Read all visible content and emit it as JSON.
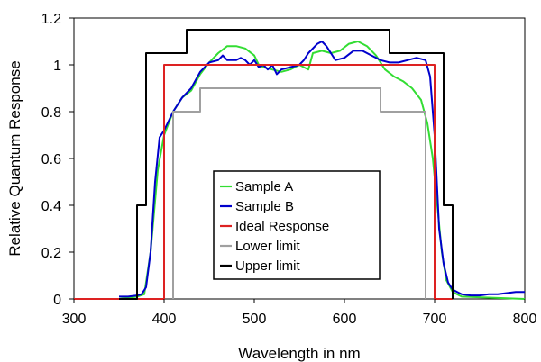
{
  "chart_data": {
    "type": "line",
    "xlabel": "Wavelength in nm",
    "ylabel": "Relative Quantum Response",
    "xlim": [
      300,
      800
    ],
    "ylim": [
      0,
      1.2
    ],
    "x_ticks": [
      300,
      400,
      500,
      600,
      700,
      800
    ],
    "x_tick_labels": [
      "300",
      "400",
      "500",
      "600",
      "700",
      "800"
    ],
    "y_ticks": [
      0,
      0.2,
      0.4,
      0.6,
      0.8,
      1,
      1.2
    ],
    "y_tick_labels": [
      "0",
      "0.2",
      "0.4",
      "0.6",
      "0.8",
      "1",
      "1.2"
    ],
    "grid": false,
    "legend_position": "center",
    "series": [
      {
        "name": "Sample A",
        "color": "#33dd33",
        "points": [
          [
            350,
            0.0
          ],
          [
            370,
            0.01
          ],
          [
            378,
            0.02
          ],
          [
            385,
            0.2
          ],
          [
            393,
            0.55
          ],
          [
            400,
            0.7
          ],
          [
            410,
            0.8
          ],
          [
            420,
            0.86
          ],
          [
            430,
            0.89
          ],
          [
            440,
            0.96
          ],
          [
            450,
            1.01
          ],
          [
            460,
            1.05
          ],
          [
            470,
            1.08
          ],
          [
            480,
            1.08
          ],
          [
            490,
            1.07
          ],
          [
            500,
            1.04
          ],
          [
            505,
            1.0
          ],
          [
            510,
            0.99
          ],
          [
            520,
            0.98
          ],
          [
            530,
            0.97
          ],
          [
            540,
            0.98
          ],
          [
            550,
            1.0
          ],
          [
            560,
            0.98
          ],
          [
            565,
            1.05
          ],
          [
            575,
            1.06
          ],
          [
            585,
            1.05
          ],
          [
            595,
            1.06
          ],
          [
            605,
            1.09
          ],
          [
            615,
            1.1
          ],
          [
            625,
            1.08
          ],
          [
            635,
            1.04
          ],
          [
            645,
            0.98
          ],
          [
            655,
            0.95
          ],
          [
            665,
            0.93
          ],
          [
            675,
            0.9
          ],
          [
            685,
            0.85
          ],
          [
            692,
            0.75
          ],
          [
            698,
            0.6
          ],
          [
            703,
            0.4
          ],
          [
            708,
            0.2
          ],
          [
            713,
            0.08
          ],
          [
            720,
            0.03
          ],
          [
            730,
            0.01
          ],
          [
            800,
            0.0
          ]
        ]
      },
      {
        "name": "Sample B",
        "color": "#0000cc",
        "points": [
          [
            350,
            0.01
          ],
          [
            360,
            0.01
          ],
          [
            370,
            0.015
          ],
          [
            375,
            0.02
          ],
          [
            380,
            0.05
          ],
          [
            385,
            0.2
          ],
          [
            390,
            0.5
          ],
          [
            395,
            0.69
          ],
          [
            400,
            0.72
          ],
          [
            410,
            0.8
          ],
          [
            420,
            0.86
          ],
          [
            430,
            0.9
          ],
          [
            440,
            0.97
          ],
          [
            450,
            1.01
          ],
          [
            460,
            1.02
          ],
          [
            465,
            1.04
          ],
          [
            470,
            1.02
          ],
          [
            480,
            1.02
          ],
          [
            485,
            1.03
          ],
          [
            490,
            1.02
          ],
          [
            495,
            1.0
          ],
          [
            500,
            1.02
          ],
          [
            505,
            0.99
          ],
          [
            510,
            1.0
          ],
          [
            515,
            0.98
          ],
          [
            520,
            1.0
          ],
          [
            525,
            0.96
          ],
          [
            530,
            0.98
          ],
          [
            540,
            0.99
          ],
          [
            550,
            1.0
          ],
          [
            555,
            1.02
          ],
          [
            560,
            1.05
          ],
          [
            570,
            1.09
          ],
          [
            575,
            1.1
          ],
          [
            580,
            1.08
          ],
          [
            585,
            1.05
          ],
          [
            590,
            1.02
          ],
          [
            600,
            1.03
          ],
          [
            610,
            1.06
          ],
          [
            620,
            1.06
          ],
          [
            630,
            1.04
          ],
          [
            640,
            1.02
          ],
          [
            650,
            1.01
          ],
          [
            660,
            1.01
          ],
          [
            670,
            1.02
          ],
          [
            680,
            1.03
          ],
          [
            690,
            1.02
          ],
          [
            695,
            0.95
          ],
          [
            700,
            0.7
          ],
          [
            705,
            0.3
          ],
          [
            710,
            0.15
          ],
          [
            715,
            0.07
          ],
          [
            720,
            0.04
          ],
          [
            730,
            0.02
          ],
          [
            740,
            0.015
          ],
          [
            750,
            0.015
          ],
          [
            760,
            0.02
          ],
          [
            770,
            0.02
          ],
          [
            780,
            0.025
          ],
          [
            790,
            0.03
          ],
          [
            800,
            0.03
          ]
        ]
      },
      {
        "name": "Ideal Response",
        "color": "#dd2222",
        "points": [
          [
            300,
            0
          ],
          [
            400,
            0
          ],
          [
            400,
            1
          ],
          [
            700,
            1
          ],
          [
            700,
            0
          ],
          [
            720,
            0
          ]
        ]
      },
      {
        "name": "Lower limit",
        "color": "#a0a0a0",
        "points": [
          [
            410,
            0
          ],
          [
            410,
            0.8
          ],
          [
            440,
            0.8
          ],
          [
            440,
            0.9
          ],
          [
            640,
            0.9
          ],
          [
            640,
            0.8
          ],
          [
            690,
            0.8
          ],
          [
            690,
            0
          ]
        ]
      },
      {
        "name": "Upper limit",
        "color": "#000000",
        "points": [
          [
            350,
            0
          ],
          [
            370,
            0
          ],
          [
            370,
            0.4
          ],
          [
            380,
            0.4
          ],
          [
            380,
            1.05
          ],
          [
            425,
            1.05
          ],
          [
            425,
            1.15
          ],
          [
            650,
            1.15
          ],
          [
            650,
            1.05
          ],
          [
            710,
            1.05
          ],
          [
            710,
            0.4
          ],
          [
            720,
            0.4
          ],
          [
            720,
            0
          ]
        ]
      }
    ]
  }
}
